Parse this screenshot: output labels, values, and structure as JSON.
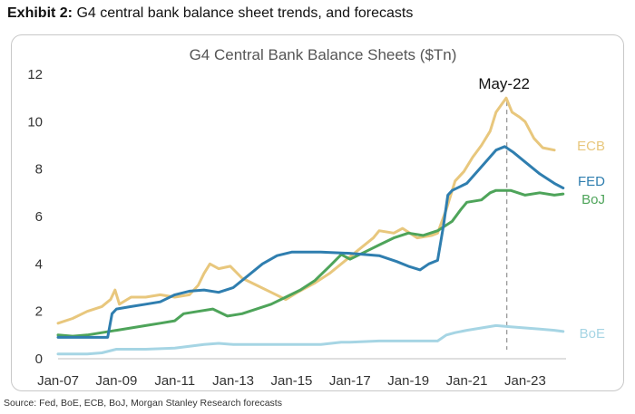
{
  "header": {
    "label": "Exhibit 2:",
    "text": "G4 central bank balance sheet trends, and forecasts"
  },
  "source": "Source: Fed, BoE, ECB, BoJ, Morgan Stanley Research forecasts",
  "chart_data": {
    "type": "line",
    "title": "G4 Central Bank Balance Sheets ($Tn)",
    "xlabel": "",
    "ylabel": "",
    "xlim": [
      2007.0,
      2024.4
    ],
    "ylim": [
      0,
      12
    ],
    "yticks": [
      0,
      2,
      4,
      6,
      8,
      10,
      12
    ],
    "xticks": [
      {
        "label": "Jan-07",
        "value": 2007.0
      },
      {
        "label": "Jan-09",
        "value": 2009.0
      },
      {
        "label": "Jan-11",
        "value": 2011.0
      },
      {
        "label": "Jan-13",
        "value": 2013.0
      },
      {
        "label": "Jan-15",
        "value": 2015.0
      },
      {
        "label": "Jan-17",
        "value": 2017.0
      },
      {
        "label": "Jan-19",
        "value": 2019.0
      },
      {
        "label": "Jan-21",
        "value": 2021.0
      },
      {
        "label": "Jan-23",
        "value": 2023.0
      }
    ],
    "grid": false,
    "annotation": {
      "label": "May-22",
      "x": 2022.37,
      "ymax": 11.0
    },
    "series": [
      {
        "name": "ECB",
        "color": "#e8c77d",
        "points": [
          [
            2007.0,
            1.5
          ],
          [
            2007.5,
            1.7
          ],
          [
            2008.0,
            2.0
          ],
          [
            2008.5,
            2.2
          ],
          [
            2008.8,
            2.5
          ],
          [
            2008.95,
            2.9
          ],
          [
            2009.1,
            2.3
          ],
          [
            2009.5,
            2.6
          ],
          [
            2010.0,
            2.6
          ],
          [
            2010.5,
            2.7
          ],
          [
            2011.0,
            2.6
          ],
          [
            2011.5,
            2.7
          ],
          [
            2011.8,
            3.1
          ],
          [
            2012.0,
            3.6
          ],
          [
            2012.2,
            4.0
          ],
          [
            2012.5,
            3.8
          ],
          [
            2012.9,
            3.9
          ],
          [
            2013.3,
            3.4
          ],
          [
            2013.8,
            3.1
          ],
          [
            2014.3,
            2.8
          ],
          [
            2014.8,
            2.5
          ],
          [
            2015.2,
            2.8
          ],
          [
            2015.8,
            3.2
          ],
          [
            2016.3,
            3.6
          ],
          [
            2016.8,
            4.1
          ],
          [
            2017.3,
            4.6
          ],
          [
            2017.8,
            5.1
          ],
          [
            2018.0,
            5.4
          ],
          [
            2018.5,
            5.3
          ],
          [
            2018.8,
            5.5
          ],
          [
            2019.3,
            5.1
          ],
          [
            2019.8,
            5.2
          ],
          [
            2020.0,
            5.3
          ],
          [
            2020.3,
            6.3
          ],
          [
            2020.6,
            7.5
          ],
          [
            2020.9,
            7.9
          ],
          [
            2021.2,
            8.5
          ],
          [
            2021.5,
            9.0
          ],
          [
            2021.8,
            9.6
          ],
          [
            2022.0,
            10.4
          ],
          [
            2022.35,
            11.0
          ],
          [
            2022.55,
            10.4
          ],
          [
            2022.8,
            10.2
          ],
          [
            2023.0,
            10.0
          ],
          [
            2023.3,
            9.3
          ],
          [
            2023.6,
            8.9
          ],
          [
            2024.0,
            8.8
          ]
        ]
      },
      {
        "name": "FED",
        "color": "#2f7eaf",
        "points": [
          [
            2007.0,
            0.9
          ],
          [
            2008.0,
            0.9
          ],
          [
            2008.7,
            0.9
          ],
          [
            2008.85,
            1.9
          ],
          [
            2009.0,
            2.1
          ],
          [
            2009.5,
            2.2
          ],
          [
            2010.0,
            2.3
          ],
          [
            2010.5,
            2.4
          ],
          [
            2011.0,
            2.7
          ],
          [
            2011.5,
            2.85
          ],
          [
            2012.0,
            2.9
          ],
          [
            2012.5,
            2.8
          ],
          [
            2013.0,
            3.0
          ],
          [
            2013.5,
            3.5
          ],
          [
            2014.0,
            4.0
          ],
          [
            2014.5,
            4.35
          ],
          [
            2015.0,
            4.5
          ],
          [
            2016.0,
            4.5
          ],
          [
            2017.0,
            4.45
          ],
          [
            2018.0,
            4.35
          ],
          [
            2018.6,
            4.1
          ],
          [
            2019.0,
            3.9
          ],
          [
            2019.4,
            3.75
          ],
          [
            2019.7,
            4.0
          ],
          [
            2020.0,
            4.15
          ],
          [
            2020.2,
            5.6
          ],
          [
            2020.35,
            6.9
          ],
          [
            2020.5,
            7.1
          ],
          [
            2021.0,
            7.4
          ],
          [
            2021.5,
            8.1
          ],
          [
            2022.0,
            8.8
          ],
          [
            2022.3,
            8.95
          ],
          [
            2022.6,
            8.7
          ],
          [
            2023.0,
            8.3
          ],
          [
            2023.5,
            7.8
          ],
          [
            2024.0,
            7.4
          ],
          [
            2024.3,
            7.2
          ]
        ]
      },
      {
        "name": "BoJ",
        "color": "#4ea45a",
        "points": [
          [
            2007.0,
            1.0
          ],
          [
            2007.5,
            0.95
          ],
          [
            2008.0,
            1.0
          ],
          [
            2008.5,
            1.1
          ],
          [
            2009.0,
            1.2
          ],
          [
            2009.5,
            1.3
          ],
          [
            2010.0,
            1.4
          ],
          [
            2010.5,
            1.5
          ],
          [
            2011.0,
            1.6
          ],
          [
            2011.3,
            1.9
          ],
          [
            2011.8,
            2.0
          ],
          [
            2012.3,
            2.1
          ],
          [
            2012.8,
            1.8
          ],
          [
            2013.3,
            1.9
          ],
          [
            2013.8,
            2.1
          ],
          [
            2014.3,
            2.3
          ],
          [
            2014.8,
            2.6
          ],
          [
            2015.3,
            2.9
          ],
          [
            2015.8,
            3.3
          ],
          [
            2016.3,
            3.9
          ],
          [
            2016.7,
            4.4
          ],
          [
            2017.0,
            4.2
          ],
          [
            2017.5,
            4.5
          ],
          [
            2018.0,
            4.8
          ],
          [
            2018.5,
            5.1
          ],
          [
            2019.0,
            5.3
          ],
          [
            2019.5,
            5.2
          ],
          [
            2020.0,
            5.4
          ],
          [
            2020.5,
            5.8
          ],
          [
            2020.8,
            6.3
          ],
          [
            2021.0,
            6.6
          ],
          [
            2021.5,
            6.7
          ],
          [
            2021.8,
            7.0
          ],
          [
            2022.0,
            7.1
          ],
          [
            2022.5,
            7.1
          ],
          [
            2023.0,
            6.9
          ],
          [
            2023.5,
            7.0
          ],
          [
            2024.0,
            6.9
          ],
          [
            2024.3,
            6.95
          ]
        ]
      },
      {
        "name": "BoE",
        "color": "#a6d5e4",
        "points": [
          [
            2007.0,
            0.2
          ],
          [
            2008.0,
            0.2
          ],
          [
            2008.5,
            0.25
          ],
          [
            2009.0,
            0.4
          ],
          [
            2010.0,
            0.4
          ],
          [
            2011.0,
            0.45
          ],
          [
            2012.0,
            0.6
          ],
          [
            2012.5,
            0.65
          ],
          [
            2013.0,
            0.6
          ],
          [
            2014.0,
            0.6
          ],
          [
            2015.0,
            0.6
          ],
          [
            2016.0,
            0.6
          ],
          [
            2016.7,
            0.7
          ],
          [
            2017.0,
            0.7
          ],
          [
            2018.0,
            0.75
          ],
          [
            2019.0,
            0.75
          ],
          [
            2020.0,
            0.75
          ],
          [
            2020.3,
            1.0
          ],
          [
            2020.6,
            1.1
          ],
          [
            2021.0,
            1.2
          ],
          [
            2021.5,
            1.3
          ],
          [
            2022.0,
            1.4
          ],
          [
            2022.5,
            1.35
          ],
          [
            2023.0,
            1.3
          ],
          [
            2023.5,
            1.25
          ],
          [
            2024.0,
            1.2
          ],
          [
            2024.3,
            1.15
          ]
        ]
      }
    ],
    "legend": [
      "ECB",
      "FED",
      "BoJ",
      "BoE"
    ]
  }
}
